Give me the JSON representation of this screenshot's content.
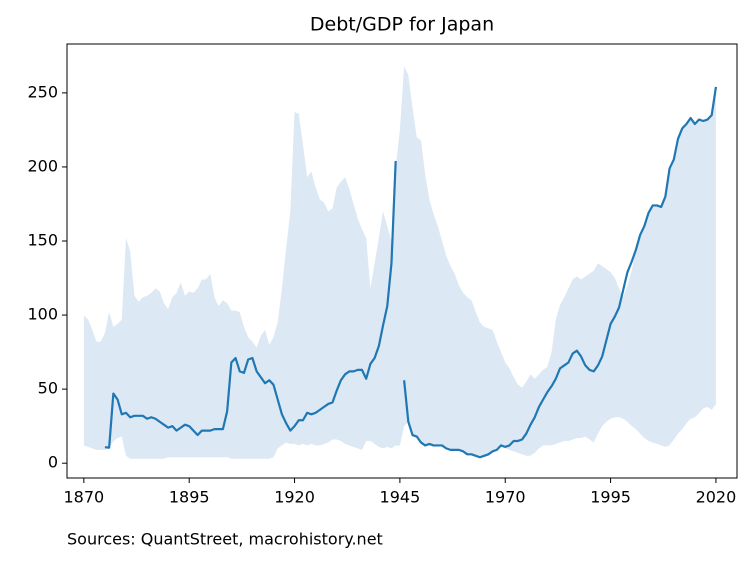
{
  "chart_data": {
    "type": "line",
    "title": "Debt/GDP for Japan",
    "note": "Sources: QuantStreet, macrohistory.net",
    "x": [
      1870,
      1871,
      1872,
      1873,
      1874,
      1875,
      1876,
      1877,
      1878,
      1879,
      1880,
      1881,
      1882,
      1883,
      1884,
      1885,
      1886,
      1887,
      1888,
      1889,
      1890,
      1891,
      1892,
      1893,
      1894,
      1895,
      1896,
      1897,
      1898,
      1899,
      1900,
      1901,
      1902,
      1903,
      1904,
      1905,
      1906,
      1907,
      1908,
      1909,
      1910,
      1911,
      1912,
      1913,
      1914,
      1915,
      1916,
      1917,
      1918,
      1919,
      1920,
      1921,
      1922,
      1923,
      1924,
      1925,
      1926,
      1927,
      1928,
      1929,
      1930,
      1931,
      1932,
      1933,
      1934,
      1935,
      1936,
      1937,
      1938,
      1939,
      1940,
      1941,
      1942,
      1943,
      1944,
      1945,
      1946,
      1947,
      1948,
      1949,
      1950,
      1951,
      1952,
      1953,
      1954,
      1955,
      1956,
      1957,
      1958,
      1959,
      1960,
      1961,
      1962,
      1963,
      1964,
      1965,
      1966,
      1967,
      1968,
      1969,
      1970,
      1971,
      1972,
      1973,
      1974,
      1975,
      1976,
      1977,
      1978,
      1979,
      1980,
      1981,
      1982,
      1983,
      1984,
      1985,
      1986,
      1987,
      1988,
      1989,
      1990,
      1991,
      1992,
      1993,
      1994,
      1995,
      1996,
      1997,
      1998,
      1999,
      2000,
      2001,
      2002,
      2003,
      2004,
      2005,
      2006,
      2007,
      2008,
      2009,
      2010,
      2011,
      2012,
      2013,
      2014,
      2015,
      2016,
      2017,
      2018,
      2019,
      2020
    ],
    "series": [
      {
        "color": "#1f77b4",
        "values": [
          null,
          null,
          null,
          null,
          null,
          10.8,
          10.5,
          47,
          43,
          33,
          34,
          31,
          32,
          32,
          32,
          30,
          31,
          30,
          28,
          26,
          24,
          25,
          22,
          24,
          26,
          25,
          22,
          19,
          22,
          22,
          22,
          23,
          23,
          23,
          35,
          68,
          71,
          62,
          61,
          70,
          71,
          62,
          58,
          54,
          56,
          53,
          43,
          33,
          27,
          22,
          25,
          29,
          29,
          34,
          33,
          34,
          36,
          38,
          40,
          41,
          49,
          56,
          60,
          62,
          62,
          63,
          63,
          57,
          67,
          71,
          79,
          93,
          106,
          135,
          204,
          null,
          56,
          28,
          19,
          18,
          14,
          12,
          13,
          12,
          12,
          12,
          10,
          9,
          9,
          9,
          8,
          6,
          6,
          5,
          4,
          5,
          6,
          8,
          9,
          12,
          11,
          12,
          15,
          15,
          16,
          20,
          26,
          31,
          38,
          43,
          48,
          52,
          57,
          64,
          66,
          68,
          74,
          76,
          72,
          66,
          63,
          62,
          66,
          72,
          83,
          94,
          99,
          105,
          117,
          129,
          136,
          144,
          154,
          160,
          169,
          174,
          174,
          173,
          180,
          199,
          205,
          219,
          226,
          229,
          233,
          229,
          232,
          231,
          232,
          235,
          254
        ]
      }
    ],
    "band": {
      "color": "#dce8f3",
      "upper": [
        100,
        97,
        90,
        82,
        82,
        88,
        102,
        92,
        94,
        97,
        152,
        143,
        113,
        109,
        112,
        113,
        115,
        118,
        116,
        108,
        104,
        112,
        115,
        122,
        113,
        116,
        115,
        118,
        124,
        124,
        128,
        112,
        106,
        110,
        108,
        103,
        103,
        102,
        92,
        85,
        82,
        78,
        86,
        90,
        80,
        85,
        95,
        118,
        145,
        170,
        237,
        236,
        215,
        193,
        197,
        186,
        178,
        176,
        170,
        172,
        186,
        190,
        193,
        185,
        175,
        165,
        158,
        152,
        118,
        135,
        152,
        170,
        160,
        150,
        200,
        225,
        268,
        262,
        240,
        220,
        218,
        195,
        178,
        168,
        160,
        150,
        140,
        133,
        128,
        120,
        115,
        112,
        110,
        102,
        95,
        92,
        91,
        90,
        82,
        75,
        68,
        64,
        58,
        53,
        51,
        55,
        60,
        57,
        60,
        63,
        65,
        75,
        97,
        107,
        112,
        118,
        124,
        126,
        124,
        126,
        128,
        130,
        135,
        133,
        131,
        129,
        125,
        118,
        112,
        120,
        130,
        144,
        154,
        160,
        169,
        174,
        174,
        173,
        180,
        199,
        205,
        219,
        226,
        229,
        233,
        229,
        232,
        231,
        232,
        235,
        254
      ],
      "lower": [
        12,
        11,
        10,
        9,
        9,
        9,
        10,
        15,
        17,
        18,
        5,
        3,
        3,
        3,
        3,
        3,
        3,
        3,
        3,
        3,
        4,
        4,
        4,
        4,
        4,
        4,
        4,
        4,
        4,
        4,
        4,
        4,
        4,
        4,
        4,
        3,
        3,
        3,
        3,
        3,
        3,
        3,
        3,
        3,
        3,
        4,
        10,
        12,
        14,
        13,
        13,
        12,
        13,
        12,
        13,
        12,
        12,
        13,
        14,
        16,
        16,
        15,
        13,
        12,
        11,
        10,
        9,
        15,
        15,
        13,
        11,
        10,
        11,
        10,
        12,
        12,
        25,
        28,
        19,
        18,
        14,
        12,
        13,
        12,
        12,
        12,
        10,
        9,
        9,
        9,
        8,
        6,
        6,
        5,
        4,
        5,
        6,
        8,
        9,
        11,
        10,
        9,
        8,
        7,
        6,
        5,
        5,
        7,
        10,
        12,
        12,
        12,
        13,
        14,
        15,
        15,
        16,
        17,
        17,
        18,
        16,
        14,
        20,
        25,
        28,
        30,
        31,
        31,
        30,
        28,
        25,
        23,
        20,
        17,
        15,
        14,
        13,
        12,
        11,
        12,
        16,
        20,
        23,
        27,
        30,
        31,
        34,
        37,
        38,
        36,
        40
      ]
    },
    "xlim": [
      1866,
      2025
    ],
    "ylim": [
      -10,
      283
    ],
    "xticks": [
      1870,
      1895,
      1920,
      1945,
      1970,
      1995,
      2020
    ],
    "yticks": [
      0,
      50,
      100,
      150,
      200,
      250
    ]
  }
}
